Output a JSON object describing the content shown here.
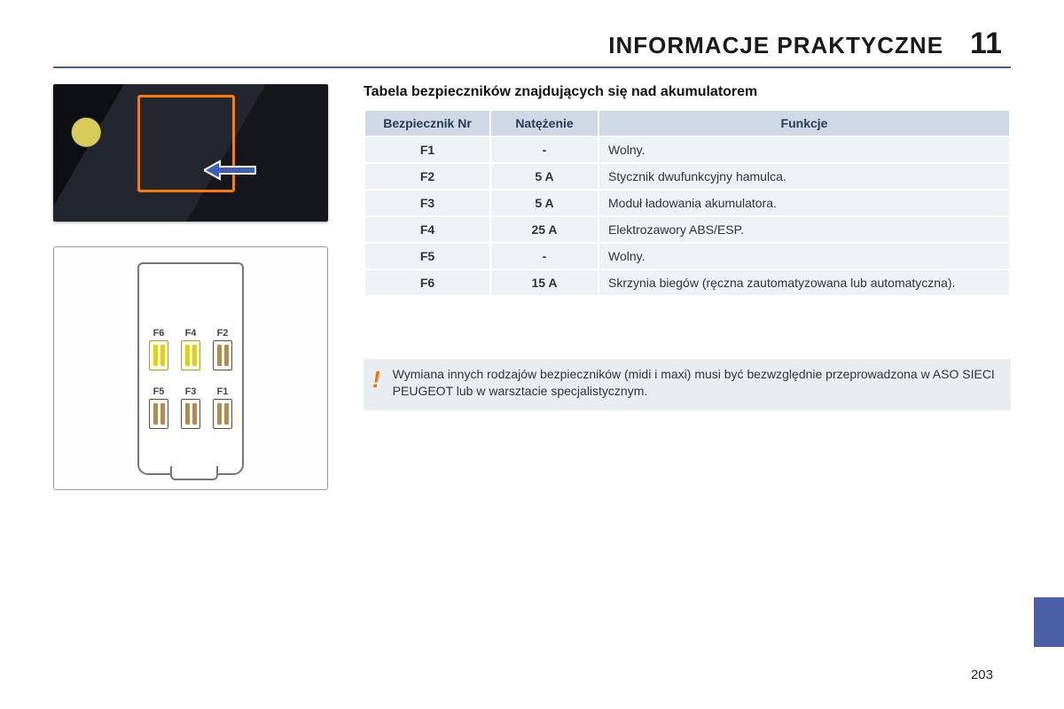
{
  "header": {
    "title": "INFORMACJE PRAKTYCZNE",
    "chapter_number": "11"
  },
  "section_title": "Tabela bezpieczników znajdujących się nad akumulatorem",
  "table": {
    "columns": [
      "Bezpiecznik Nr",
      "Natężenie",
      "Funkcje"
    ],
    "rows": [
      {
        "nr": "F1",
        "amp": "-",
        "fn": "Wolny."
      },
      {
        "nr": "F2",
        "amp": "5 A",
        "fn": "Stycznik dwufunkcyjny hamulca."
      },
      {
        "nr": "F3",
        "amp": "5 A",
        "fn": "Moduł ładowania akumulatora."
      },
      {
        "nr": "F4",
        "amp": "25 A",
        "fn": "Elektrozawory ABS/ESP."
      },
      {
        "nr": "F5",
        "amp": "-",
        "fn": "Wolny."
      },
      {
        "nr": "F6",
        "amp": "15 A",
        "fn": "Skrzynia biegów (ręczna zautomatyzowana lub automatyczna)."
      }
    ],
    "header_bg": "#cfd8e6",
    "row_bg": "#eef1f6"
  },
  "diagram": {
    "fuses": [
      {
        "label": "F6",
        "color": "yellow"
      },
      {
        "label": "F4",
        "color": "yellow"
      },
      {
        "label": "F2",
        "color": "brown"
      },
      {
        "label": "F5",
        "color": "brown"
      },
      {
        "label": "F3",
        "color": "brown"
      },
      {
        "label": "F1",
        "color": "brown"
      }
    ]
  },
  "warning": {
    "mark": "!",
    "text": "Wymiana innych rodzajów bezpieczników (midi i maxi) musi być bezwzględnie przeprowadzona w ASO SIECI PEUGEOT lub w warsztacie specjalistycznym."
  },
  "page_number": "203",
  "colors": {
    "rule": "#3b5fb8",
    "highlight_orange": "#ff7a00",
    "tab": "#4a5fa8",
    "arrow_fill": "#3b5fb8"
  }
}
